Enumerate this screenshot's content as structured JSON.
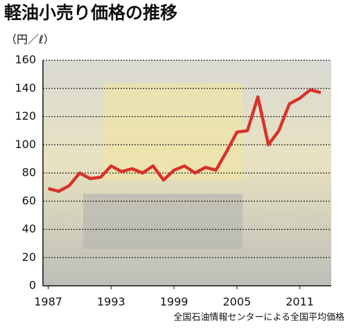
{
  "chart_data": {
    "type": "line",
    "title": "軽油小売り価格の推移",
    "y_label": "（円／ℓ）",
    "source": "全国石油情報センターによる全国平均価格",
    "x": [
      1987,
      1988,
      1989,
      1990,
      1991,
      1992,
      1993,
      1994,
      1995,
      1996,
      1997,
      1998,
      1999,
      2000,
      2001,
      2002,
      2003,
      2004,
      2005,
      2006,
      2007,
      2008,
      2009,
      2010,
      2011,
      2012,
      2013
    ],
    "series": [
      {
        "name": "軽油小売り価格",
        "color": "#d8322a",
        "values": [
          69,
          67,
          71,
          80,
          76,
          77,
          85,
          81,
          83,
          80,
          85,
          75,
          82,
          85,
          80,
          84,
          82,
          95,
          109,
          110,
          134,
          100,
          110,
          129,
          133,
          139,
          137
        ]
      }
    ],
    "xlim": [
      1986.5,
      2014
    ],
    "xticks": [
      1987,
      1993,
      1999,
      2005,
      2011
    ],
    "ylim": [
      0,
      160
    ],
    "yticks": [
      0,
      20,
      40,
      60,
      80,
      100,
      120,
      140,
      160
    ],
    "grid": true
  }
}
